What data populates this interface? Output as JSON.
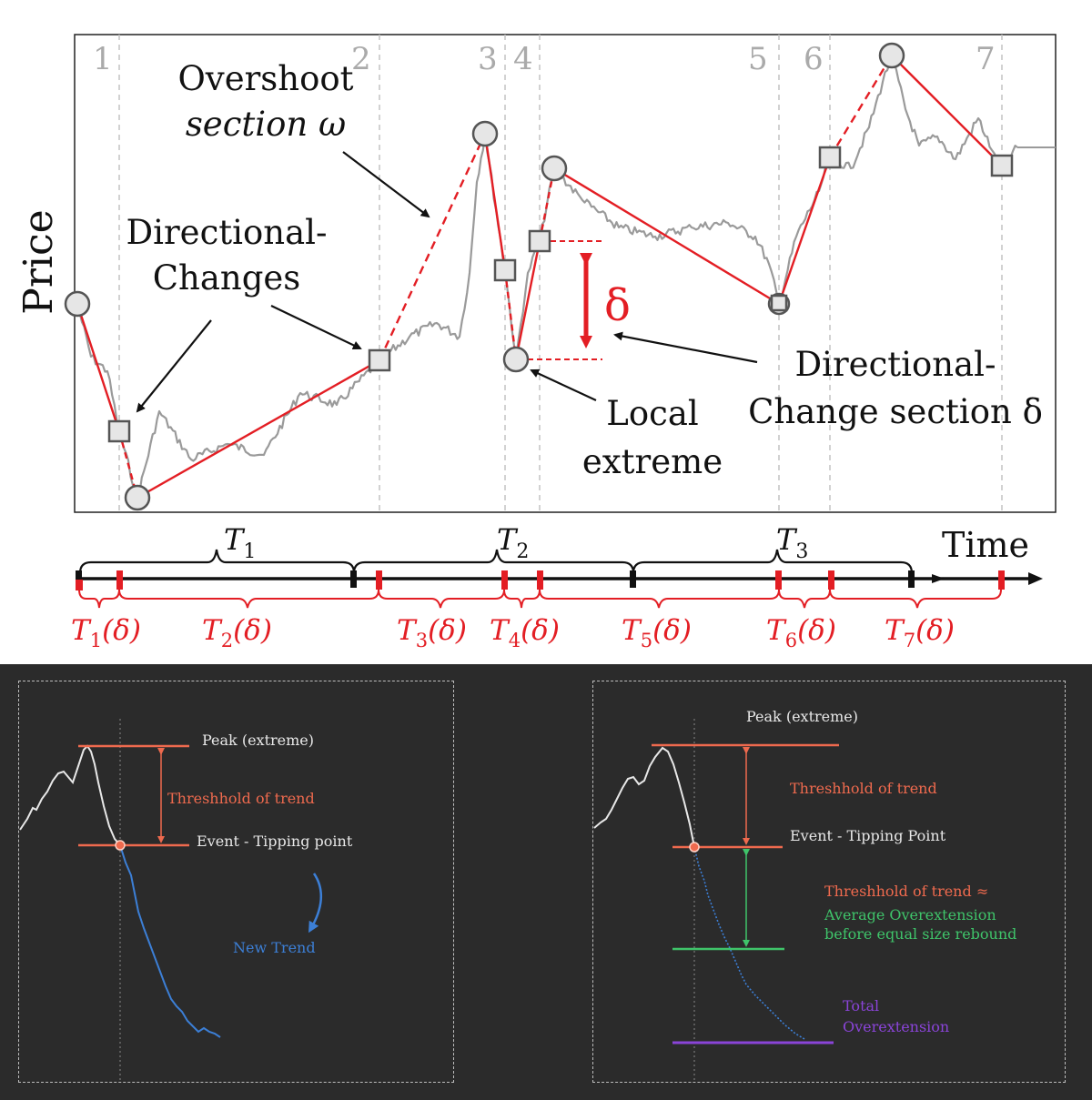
{
  "top": {
    "price_label": "Price",
    "time_label": "Time",
    "section_numbers": [
      "1",
      "2",
      "3",
      "4",
      "5",
      "6",
      "7"
    ],
    "annotations": {
      "overshoot_line1": "Overshoot",
      "overshoot_line2": "section ω",
      "dc_line1": "Directional-",
      "dc_line2": "Changes",
      "delta_symbol": "δ",
      "local_extreme_line1": "Local",
      "local_extreme_line2": "extreme",
      "dc_section_line1": "Directional-",
      "dc_section_line2": "Change section δ"
    },
    "trend_periods": [
      {
        "base": "T",
        "sub": "1"
      },
      {
        "base": "T",
        "sub": "2"
      },
      {
        "base": "T",
        "sub": "3"
      }
    ],
    "dc_periods": [
      {
        "base": "T",
        "sub": "1",
        "arg": "(δ)"
      },
      {
        "base": "T",
        "sub": "2",
        "arg": "(δ)"
      },
      {
        "base": "T",
        "sub": "3",
        "arg": "(δ)"
      },
      {
        "base": "T",
        "sub": "4",
        "arg": "(δ)"
      },
      {
        "base": "T",
        "sub": "5",
        "arg": "(δ)"
      },
      {
        "base": "T",
        "sub": "6",
        "arg": "(δ)"
      },
      {
        "base": "T",
        "sub": "7",
        "arg": "(δ)"
      }
    ],
    "colors": {
      "red": "#e31e24",
      "price": "#9a9a9a",
      "grid": "#bfbfbf"
    }
  },
  "bottom_left": {
    "peak_label": "Peak (extreme)",
    "threshold_label": "Threshhold of trend",
    "event_label": "Event - Tipping point",
    "new_trend_label": "New Trend"
  },
  "bottom_right": {
    "peak_label": "Peak (extreme)",
    "threshold_label": "Threshhold of trend",
    "event_label": "Event - Tipping Point",
    "approx_line1": "Threshhold of trend ≈",
    "approx_line2": "Average Overextension",
    "approx_line3": "before equal size rebound",
    "total_line1": "Total",
    "total_line2": "Overextension"
  },
  "dark_colors": {
    "orange": "#ef6a4e",
    "blue": "#3c7fd6",
    "green": "#3fc46a",
    "purple": "#8a44d8",
    "white": "#e8e8e8"
  }
}
